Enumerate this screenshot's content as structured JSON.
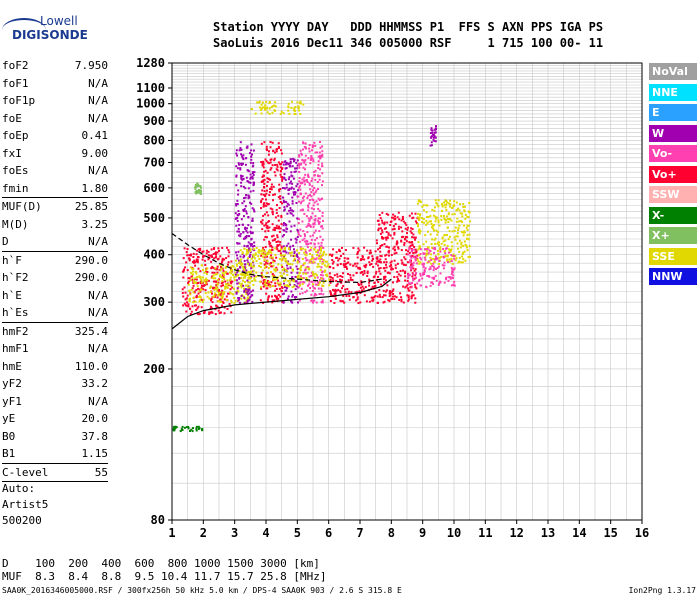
{
  "logo": {
    "line1": "Lowell",
    "line2": "DIGISONDE"
  },
  "header": {
    "line1": "Station YYYY DAY   DDD HHMMSS P1  FFS S AXN PPS IGA PS",
    "line2": "SaoLuis 2016 Dec11 346 005000 RSF     1 715 100 00- 11"
  },
  "params": [
    {
      "name": "foF2",
      "value": "7.950"
    },
    {
      "name": "foF1",
      "value": "N/A"
    },
    {
      "name": "foF1p",
      "value": "N/A"
    },
    {
      "name": "foE",
      "value": "N/A"
    },
    {
      "name": "foEp",
      "value": "0.41"
    },
    {
      "name": "fxI",
      "value": "9.00"
    },
    {
      "name": "foEs",
      "value": "N/A"
    },
    {
      "name": "fmin",
      "value": "1.80",
      "sep": true
    },
    {
      "name": "MUF(D)",
      "value": "25.85"
    },
    {
      "name": "M(D)",
      "value": "3.25"
    },
    {
      "name": "D",
      "value": "N/A",
      "sep": true
    },
    {
      "name": "h`F",
      "value": "290.0"
    },
    {
      "name": "h`F2",
      "value": "290.0"
    },
    {
      "name": "h`E",
      "value": "N/A"
    },
    {
      "name": "h`Es",
      "value": "N/A",
      "sep": true
    },
    {
      "name": "hmF2",
      "value": "325.4"
    },
    {
      "name": "hmF1",
      "value": "N/A"
    },
    {
      "name": "hmE",
      "value": "110.0"
    },
    {
      "name": "yF2",
      "value": "33.2"
    },
    {
      "name": "yF1",
      "value": "N/A"
    },
    {
      "name": "yE",
      "value": "20.0"
    },
    {
      "name": "B0",
      "value": "37.8"
    },
    {
      "name": "B1",
      "value": "1.15",
      "sep": true
    },
    {
      "name": "C-level",
      "value": "55",
      "sep": true
    }
  ],
  "auto": {
    "line1": "Auto:",
    "line2": "Artist5",
    "line3": "500200"
  },
  "dtable": {
    "line1": "D    100  200  400  600  800 1000 1500 3000 [km]",
    "line2": "MUF  8.3  8.4  8.8  9.5 10.4 11.7 15.7 25.8 [MHz]"
  },
  "footer": "SAA0K_2016346005000.RSF / 300fx256h 50 kHz 5.0 km / DPS-4 SAA0K 903 / 2.6 S 315.8 E",
  "version": "Ion2Png 1.3.17",
  "legend": [
    {
      "label": "NoVal",
      "color": "#a0a0a0"
    },
    {
      "label": "NNE",
      "color": "#00e0ff"
    },
    {
      "label": "E",
      "color": "#2aa0ff"
    },
    {
      "label": "W",
      "color": "#a000b0"
    },
    {
      "label": "Vo-",
      "color": "#ff40b0"
    },
    {
      "label": "Vo+",
      "color": "#ff0030"
    },
    {
      "label": "SSW",
      "color": "#ffb0b0"
    },
    {
      "label": "X-",
      "color": "#008000"
    },
    {
      "label": "X+",
      "color": "#80c060"
    },
    {
      "label": "SSE",
      "color": "#e0d800"
    },
    {
      "label": "NNW",
      "color": "#1010e0"
    }
  ],
  "chart_data": {
    "type": "scatter",
    "title": "",
    "xlabel": "",
    "ylabel": "",
    "xlim": [
      1,
      16
    ],
    "ylim": [
      80,
      1280
    ],
    "y_scale": "log",
    "x_ticks": [
      1,
      2,
      3,
      4,
      5,
      6,
      7,
      8,
      9,
      10,
      11,
      12,
      13,
      14,
      15,
      16
    ],
    "y_ticks": [
      80,
      200,
      300,
      400,
      500,
      600,
      700,
      800,
      900,
      1000,
      1100,
      1280
    ],
    "grid": true,
    "trace_solid": {
      "x": [
        1.0,
        1.5,
        2.0,
        3.0,
        4.0,
        5.0,
        6.0,
        7.0,
        7.7,
        8.0
      ],
      "y": [
        255,
        275,
        285,
        295,
        300,
        305,
        310,
        318,
        330,
        345
      ]
    },
    "trace_dashed": {
      "x": [
        1.0,
        1.5,
        2.0,
        2.5,
        3.0,
        3.5,
        4.0,
        5.0,
        6.0,
        7.0,
        7.7
      ],
      "y": [
        455,
        425,
        400,
        380,
        365,
        355,
        350,
        345,
        340,
        338,
        345
      ]
    },
    "clusters": [
      {
        "x": [
          1.3,
          2.9
        ],
        "y": [
          280,
          420
        ],
        "color": "#ff0030"
      },
      {
        "x": [
          1.5,
          3.5
        ],
        "y": [
          300,
          380
        ],
        "color": "#e0d800"
      },
      {
        "x": [
          3.0,
          3.6
        ],
        "y": [
          300,
          800
        ],
        "color": "#a000b0"
      },
      {
        "x": [
          3.8,
          4.5
        ],
        "y": [
          300,
          800
        ],
        "color": "#ff0030"
      },
      {
        "x": [
          4.5,
          5.0
        ],
        "y": [
          300,
          720
        ],
        "color": "#a000b0"
      },
      {
        "x": [
          5.0,
          5.8
        ],
        "y": [
          300,
          800
        ],
        "color": "#ff40b0"
      },
      {
        "x": [
          3.0,
          6.0
        ],
        "y": [
          330,
          420
        ],
        "color": "#e0d800"
      },
      {
        "x": [
          6.0,
          7.5
        ],
        "y": [
          300,
          420
        ],
        "color": "#ff0030"
      },
      {
        "x": [
          7.5,
          8.8
        ],
        "y": [
          300,
          520
        ],
        "color": "#ff0030"
      },
      {
        "x": [
          8.8,
          10.5
        ],
        "y": [
          380,
          560
        ],
        "color": "#e0d800"
      },
      {
        "x": [
          8.5,
          10.0
        ],
        "y": [
          330,
          420
        ],
        "color": "#ff40b0"
      },
      {
        "x": [
          3.5,
          5.2
        ],
        "y": [
          940,
          1020
        ],
        "color": "#e0d800"
      },
      {
        "x": [
          9.2,
          9.4
        ],
        "y": [
          780,
          880
        ],
        "color": "#a000b0"
      },
      {
        "x": [
          1.7,
          1.9
        ],
        "y": [
          580,
          620
        ],
        "color": "#80c060"
      },
      {
        "x": [
          1.0,
          2.0
        ],
        "y": [
          138,
          142
        ],
        "color": "#008000"
      }
    ]
  }
}
